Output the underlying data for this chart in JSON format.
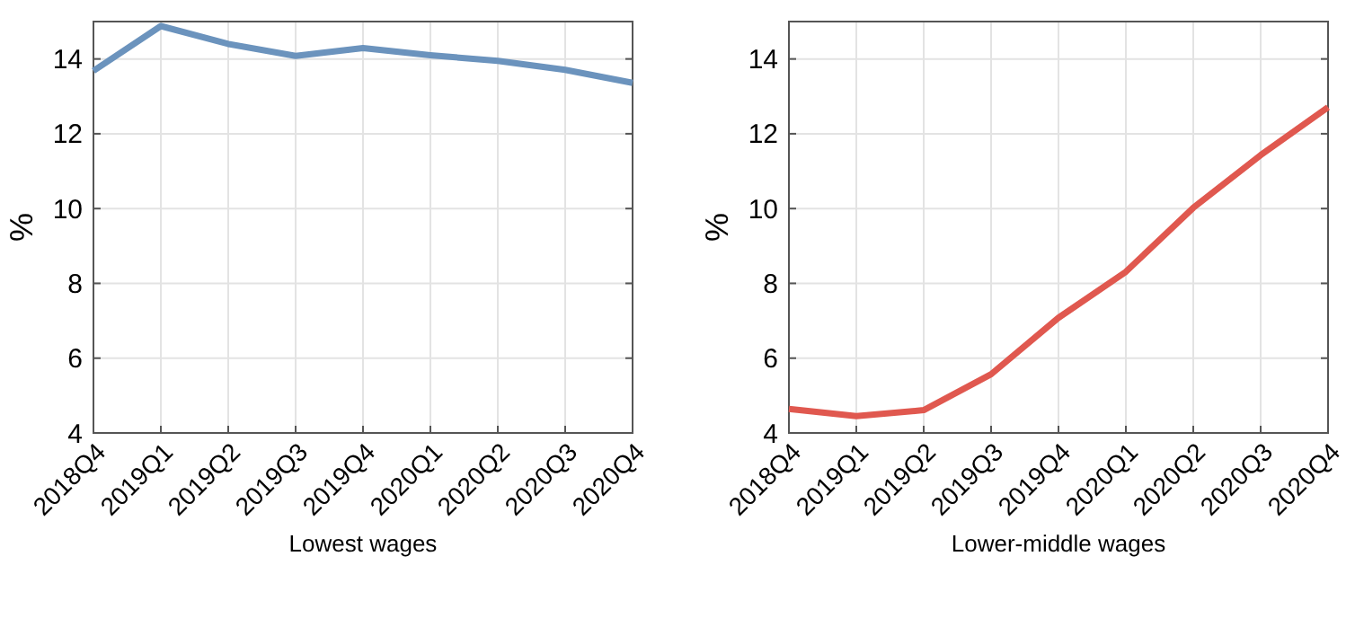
{
  "chart_data": [
    {
      "type": "line",
      "xlabel": "Lowest wages",
      "ylabel": "%",
      "categories": [
        "2018Q4",
        "2019Q1",
        "2019Q2",
        "2019Q3",
        "2019Q4",
        "2020Q1",
        "2020Q2",
        "2020Q3",
        "2020Q4"
      ],
      "series": [
        {
          "color": "#6b93bd",
          "values": [
            13.68,
            14.88,
            14.4,
            14.08,
            14.29,
            14.1,
            13.95,
            13.71,
            13.36
          ]
        }
      ],
      "ylim": [
        4,
        15
      ],
      "yticks": [
        4,
        6,
        8,
        10,
        12,
        14
      ],
      "grid": true
    },
    {
      "type": "line",
      "xlabel": "Lower-middle wages",
      "ylabel": "%",
      "categories": [
        "2018Q4",
        "2019Q1",
        "2019Q2",
        "2019Q3",
        "2019Q4",
        "2020Q1",
        "2020Q2",
        "2020Q3",
        "2020Q4"
      ],
      "series": [
        {
          "color": "#e0584f",
          "values": [
            4.64,
            4.45,
            4.61,
            5.57,
            7.08,
            8.31,
            10.02,
            11.43,
            12.71
          ]
        }
      ],
      "ylim": [
        4,
        15
      ],
      "yticks": [
        4,
        6,
        8,
        10,
        12,
        14
      ],
      "grid": true
    }
  ]
}
